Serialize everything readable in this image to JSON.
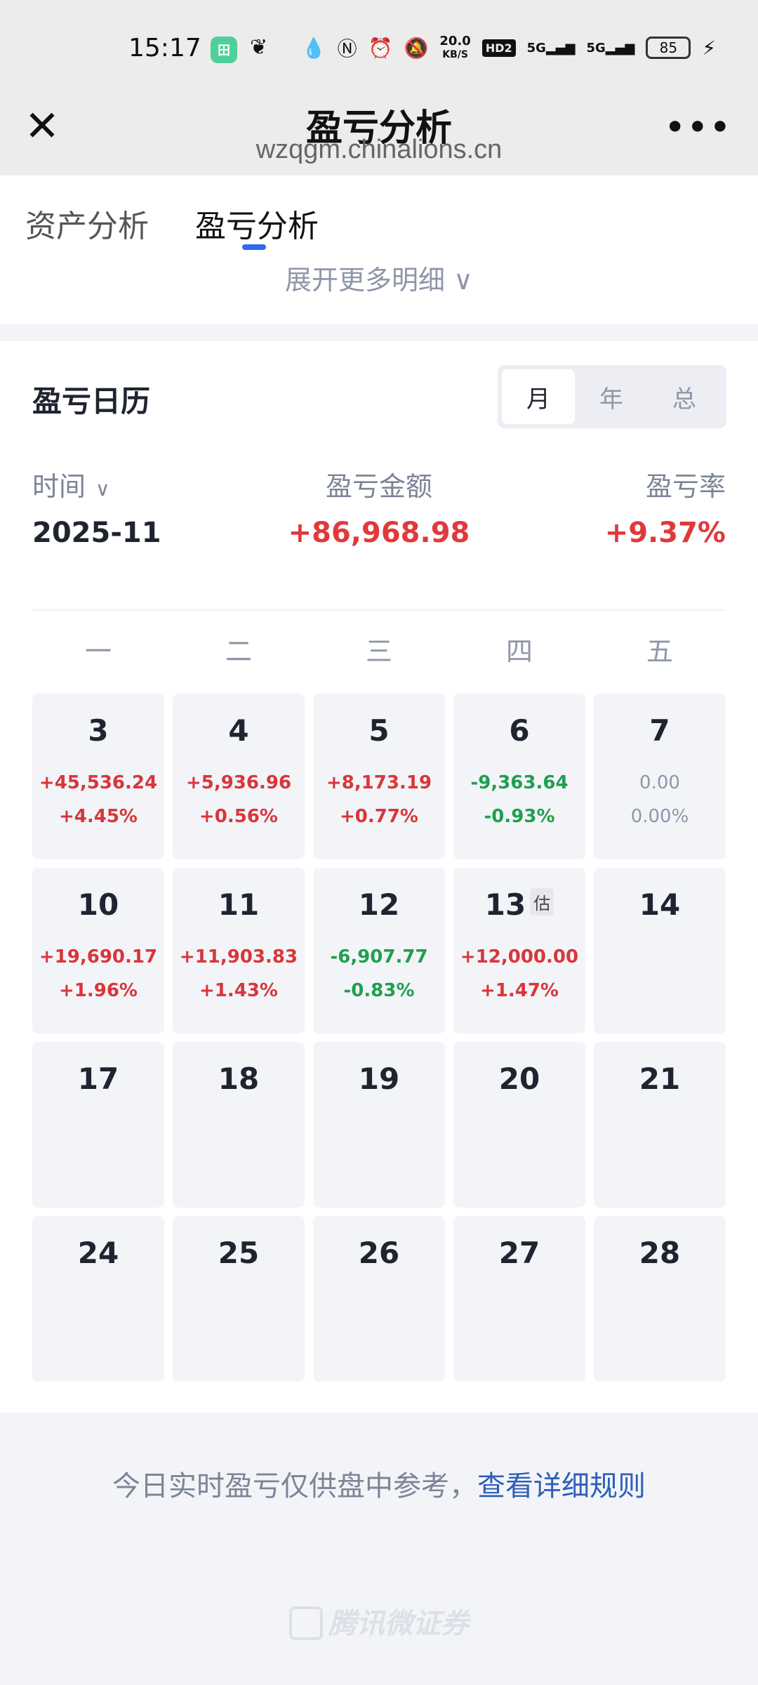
{
  "status_bar": {
    "time": "15:17",
    "app_icon_text": "田",
    "net_speed_value": "20.0",
    "net_speed_unit": "KB/S",
    "hd_label": "HD2",
    "signal_1": "5G",
    "signal_2": "5G",
    "battery": "85"
  },
  "header": {
    "title": "盈亏分析",
    "url": "wzqgm.chinalions.cn",
    "close_glyph": "✕",
    "more_glyph": "•••"
  },
  "tabs": [
    {
      "label": "资产分析"
    },
    {
      "label": "盈亏分析"
    }
  ],
  "expand_more": "展开更多明细 ∨",
  "calendar": {
    "title": "盈亏日历",
    "segments": [
      "月",
      "年",
      "总"
    ],
    "columns": {
      "time": "时间",
      "amount": "盈亏金额",
      "rate": "盈亏率"
    },
    "summary": {
      "period": "2025-11",
      "amount": "+86,968.98",
      "rate": "+9.37%"
    },
    "weekdays": [
      "一",
      "二",
      "三",
      "四",
      "五"
    ],
    "estimate_tag": "估",
    "days": [
      {
        "day": "3",
        "amount": "+45,536.24",
        "pct": "+4.45%",
        "trend": "up"
      },
      {
        "day": "4",
        "amount": "+5,936.96",
        "pct": "+0.56%",
        "trend": "up"
      },
      {
        "day": "5",
        "amount": "+8,173.19",
        "pct": "+0.77%",
        "trend": "up"
      },
      {
        "day": "6",
        "amount": "-9,363.64",
        "pct": "-0.93%",
        "trend": "down"
      },
      {
        "day": "7",
        "amount": "0.00",
        "pct": "0.00%",
        "trend": "flat"
      },
      {
        "day": "10",
        "amount": "+19,690.17",
        "pct": "+1.96%",
        "trend": "up"
      },
      {
        "day": "11",
        "amount": "+11,903.83",
        "pct": "+1.43%",
        "trend": "up"
      },
      {
        "day": "12",
        "amount": "-6,907.77",
        "pct": "-0.83%",
        "trend": "down"
      },
      {
        "day": "13",
        "amount": "+12,000.00",
        "pct": "+1.47%",
        "trend": "up",
        "estimated": true
      },
      {
        "day": "14",
        "amount": "",
        "pct": "",
        "trend": "none"
      },
      {
        "day": "17",
        "amount": "",
        "pct": "",
        "trend": "none"
      },
      {
        "day": "18",
        "amount": "",
        "pct": "",
        "trend": "none"
      },
      {
        "day": "19",
        "amount": "",
        "pct": "",
        "trend": "none"
      },
      {
        "day": "20",
        "amount": "",
        "pct": "",
        "trend": "none"
      },
      {
        "day": "21",
        "amount": "",
        "pct": "",
        "trend": "none"
      },
      {
        "day": "24",
        "amount": "",
        "pct": "",
        "trend": "none"
      },
      {
        "day": "25",
        "amount": "",
        "pct": "",
        "trend": "none"
      },
      {
        "day": "26",
        "amount": "",
        "pct": "",
        "trend": "none"
      },
      {
        "day": "27",
        "amount": "",
        "pct": "",
        "trend": "none"
      },
      {
        "day": "28",
        "amount": "",
        "pct": "",
        "trend": "none"
      }
    ]
  },
  "footer": {
    "note": "今日实时盈亏仅供盘中参考，",
    "link": "查看详细规则",
    "brand": "腾讯微证券"
  },
  "colors": {
    "up": "#d8363a",
    "down": "#1f9f4e",
    "accent": "#2f6bf0",
    "link": "#2f5fb8"
  }
}
